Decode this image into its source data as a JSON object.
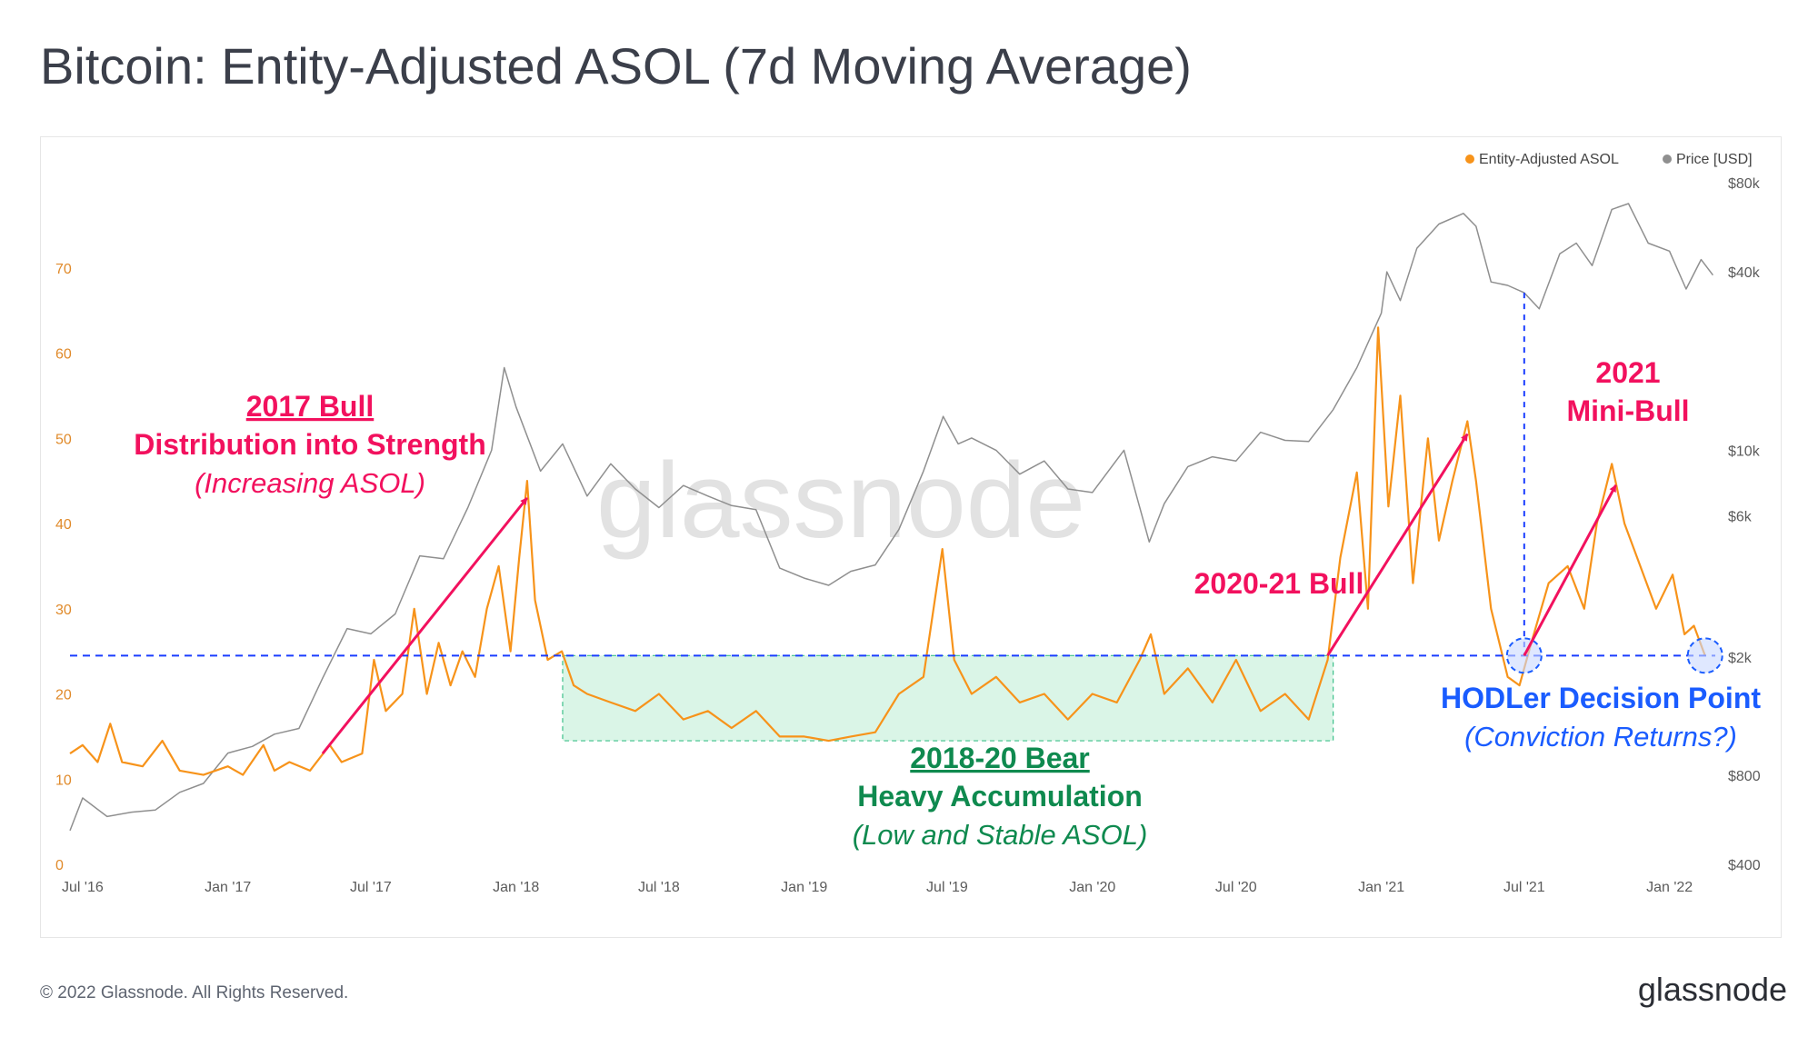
{
  "title": "Bitcoin: Entity-Adjusted ASOL (7d Moving Average)",
  "footer": {
    "copyright": "© 2022 Glassnode. All Rights Reserved.",
    "logo": "glassnode"
  },
  "watermark": "glassnode",
  "colors": {
    "asol": "#f7931a",
    "price": "#8f8f8f",
    "annotation_red": "#f2115e",
    "annotation_green": "#0f8a4f",
    "annotation_blue": "#1a5cff",
    "box_fill": "#cdf1df",
    "box_stroke": "#3cc08a",
    "left_axis": "#e08a2a",
    "right_axis": "#5b5b5b",
    "axis_text": "#5b5b5b"
  },
  "chart_data": {
    "type": "line",
    "title": "Bitcoin: Entity-Adjusted ASOL (7d Moving Average)",
    "x_range": [
      "2016-06-15",
      "2022-02-28"
    ],
    "x_ticks": [
      {
        "label": "Jul '16",
        "date": "2016-07-01"
      },
      {
        "label": "Jan '17",
        "date": "2017-01-01"
      },
      {
        "label": "Jul '17",
        "date": "2017-07-01"
      },
      {
        "label": "Jan '18",
        "date": "2018-01-01"
      },
      {
        "label": "Jul '18",
        "date": "2018-07-01"
      },
      {
        "label": "Jan '19",
        "date": "2019-01-01"
      },
      {
        "label": "Jul '19",
        "date": "2019-07-01"
      },
      {
        "label": "Jan '20",
        "date": "2020-01-01"
      },
      {
        "label": "Jul '20",
        "date": "2020-07-01"
      },
      {
        "label": "Jan '21",
        "date": "2021-01-01"
      },
      {
        "label": "Jul '21",
        "date": "2021-07-01"
      },
      {
        "label": "Jan '22",
        "date": "2022-01-01"
      }
    ],
    "y_left": {
      "min": 0,
      "max": 80,
      "ticks": [
        0,
        10,
        20,
        30,
        40,
        50,
        60,
        70
      ]
    },
    "y_right": {
      "scale": "log",
      "min": 400,
      "max": 80000,
      "ticks": [
        {
          "label": "$400",
          "value": 400
        },
        {
          "label": "$800",
          "value": 800
        },
        {
          "label": "$2k",
          "value": 2000
        },
        {
          "label": "$6k",
          "value": 6000
        },
        {
          "label": "$10k",
          "value": 10000
        },
        {
          "label": "$40k",
          "value": 40000
        },
        {
          "label": "$80k",
          "value": 80000
        }
      ]
    },
    "legend": {
      "position": "top-right",
      "items": [
        {
          "label": "Entity-Adjusted ASOL",
          "color": "#f7931a"
        },
        {
          "label": "Price [USD]",
          "color": "#8f8f8f"
        }
      ]
    },
    "series": [
      {
        "name": "Entity-Adjusted ASOL",
        "axis": "left",
        "points": [
          [
            "2016-06-15",
            13
          ],
          [
            "2016-07-01",
            14
          ],
          [
            "2016-07-20",
            12
          ],
          [
            "2016-08-05",
            16.5
          ],
          [
            "2016-08-20",
            12
          ],
          [
            "2016-09-15",
            11.5
          ],
          [
            "2016-10-10",
            14.5
          ],
          [
            "2016-11-01",
            11
          ],
          [
            "2016-12-01",
            10.5
          ],
          [
            "2017-01-01",
            11.5
          ],
          [
            "2017-01-20",
            10.5
          ],
          [
            "2017-02-15",
            14
          ],
          [
            "2017-03-01",
            11
          ],
          [
            "2017-03-20",
            12
          ],
          [
            "2017-04-15",
            11
          ],
          [
            "2017-05-10",
            14
          ],
          [
            "2017-05-25",
            12
          ],
          [
            "2017-06-20",
            13
          ],
          [
            "2017-07-05",
            24
          ],
          [
            "2017-07-20",
            18
          ],
          [
            "2017-08-10",
            20
          ],
          [
            "2017-08-25",
            30
          ],
          [
            "2017-09-10",
            20
          ],
          [
            "2017-09-25",
            26
          ],
          [
            "2017-10-10",
            21
          ],
          [
            "2017-10-25",
            25
          ],
          [
            "2017-11-10",
            22
          ],
          [
            "2017-11-25",
            30
          ],
          [
            "2017-12-10",
            35
          ],
          [
            "2017-12-25",
            25
          ],
          [
            "2018-01-05",
            36
          ],
          [
            "2018-01-15",
            45
          ],
          [
            "2018-01-25",
            31
          ],
          [
            "2018-02-10",
            24
          ],
          [
            "2018-02-28",
            25
          ],
          [
            "2018-03-15",
            21
          ],
          [
            "2018-04-01",
            20
          ],
          [
            "2018-05-01",
            19
          ],
          [
            "2018-06-01",
            18
          ],
          [
            "2018-07-01",
            20
          ],
          [
            "2018-08-01",
            17
          ],
          [
            "2018-09-01",
            18
          ],
          [
            "2018-10-01",
            16
          ],
          [
            "2018-11-01",
            18
          ],
          [
            "2018-12-01",
            15
          ],
          [
            "2019-01-01",
            15
          ],
          [
            "2019-02-01",
            14.5
          ],
          [
            "2019-03-01",
            15
          ],
          [
            "2019-04-01",
            15.5
          ],
          [
            "2019-05-01",
            20
          ],
          [
            "2019-06-01",
            22
          ],
          [
            "2019-06-25",
            37
          ],
          [
            "2019-07-10",
            24
          ],
          [
            "2019-08-01",
            20
          ],
          [
            "2019-09-01",
            22
          ],
          [
            "2019-10-01",
            19
          ],
          [
            "2019-11-01",
            20
          ],
          [
            "2019-12-01",
            17
          ],
          [
            "2020-01-01",
            20
          ],
          [
            "2020-02-01",
            19
          ],
          [
            "2020-03-01",
            24
          ],
          [
            "2020-03-15",
            27
          ],
          [
            "2020-04-01",
            20
          ],
          [
            "2020-05-01",
            23
          ],
          [
            "2020-06-01",
            19
          ],
          [
            "2020-07-01",
            24
          ],
          [
            "2020-08-01",
            18
          ],
          [
            "2020-09-01",
            20
          ],
          [
            "2020-10-01",
            17
          ],
          [
            "2020-10-25",
            24
          ],
          [
            "2020-11-10",
            36
          ],
          [
            "2020-12-01",
            46
          ],
          [
            "2020-12-15",
            30
          ],
          [
            "2020-12-28",
            63
          ],
          [
            "2021-01-10",
            42
          ],
          [
            "2021-01-25",
            55
          ],
          [
            "2021-02-10",
            33
          ],
          [
            "2021-03-01",
            50
          ],
          [
            "2021-03-15",
            38
          ],
          [
            "2021-04-01",
            45
          ],
          [
            "2021-04-20",
            52
          ],
          [
            "2021-05-01",
            45
          ],
          [
            "2021-05-20",
            30
          ],
          [
            "2021-06-10",
            22
          ],
          [
            "2021-06-25",
            21
          ],
          [
            "2021-07-10",
            26
          ],
          [
            "2021-08-01",
            33
          ],
          [
            "2021-08-25",
            35
          ],
          [
            "2021-09-15",
            30
          ],
          [
            "2021-10-01",
            40
          ],
          [
            "2021-10-20",
            47
          ],
          [
            "2021-11-05",
            40
          ],
          [
            "2021-11-25",
            35
          ],
          [
            "2021-12-15",
            30
          ],
          [
            "2022-01-05",
            34
          ],
          [
            "2022-01-20",
            27
          ],
          [
            "2022-02-01",
            28
          ],
          [
            "2022-02-15",
            24.5
          ]
        ]
      },
      {
        "name": "Price [USD]",
        "axis": "right",
        "points": [
          [
            "2016-06-15",
            520
          ],
          [
            "2016-07-01",
            670
          ],
          [
            "2016-08-01",
            580
          ],
          [
            "2016-09-01",
            600
          ],
          [
            "2016-10-01",
            610
          ],
          [
            "2016-11-01",
            700
          ],
          [
            "2016-12-01",
            750
          ],
          [
            "2017-01-01",
            950
          ],
          [
            "2017-02-01",
            1000
          ],
          [
            "2017-03-01",
            1100
          ],
          [
            "2017-04-01",
            1150
          ],
          [
            "2017-05-01",
            1700
          ],
          [
            "2017-06-01",
            2500
          ],
          [
            "2017-07-01",
            2400
          ],
          [
            "2017-08-01",
            2800
          ],
          [
            "2017-09-01",
            4400
          ],
          [
            "2017-10-01",
            4300
          ],
          [
            "2017-11-01",
            6400
          ],
          [
            "2017-12-01",
            10000
          ],
          [
            "2017-12-17",
            19000
          ],
          [
            "2018-01-01",
            14000
          ],
          [
            "2018-02-01",
            8500
          ],
          [
            "2018-03-01",
            10500
          ],
          [
            "2018-04-01",
            7000
          ],
          [
            "2018-05-01",
            9000
          ],
          [
            "2018-06-01",
            7400
          ],
          [
            "2018-07-01",
            6400
          ],
          [
            "2018-08-01",
            7600
          ],
          [
            "2018-09-01",
            7000
          ],
          [
            "2018-10-01",
            6500
          ],
          [
            "2018-11-01",
            6300
          ],
          [
            "2018-12-01",
            4000
          ],
          [
            "2019-01-01",
            3700
          ],
          [
            "2019-02-01",
            3500
          ],
          [
            "2019-03-01",
            3900
          ],
          [
            "2019-04-01",
            4100
          ],
          [
            "2019-05-01",
            5400
          ],
          [
            "2019-06-01",
            8500
          ],
          [
            "2019-06-26",
            13000
          ],
          [
            "2019-07-15",
            10500
          ],
          [
            "2019-08-01",
            11000
          ],
          [
            "2019-09-01",
            10000
          ],
          [
            "2019-10-01",
            8300
          ],
          [
            "2019-11-01",
            9200
          ],
          [
            "2019-12-01",
            7400
          ],
          [
            "2020-01-01",
            7200
          ],
          [
            "2020-02-10",
            10000
          ],
          [
            "2020-03-13",
            4900
          ],
          [
            "2020-04-01",
            6600
          ],
          [
            "2020-05-01",
            8800
          ],
          [
            "2020-06-01",
            9500
          ],
          [
            "2020-07-01",
            9200
          ],
          [
            "2020-08-01",
            11500
          ],
          [
            "2020-09-01",
            10800
          ],
          [
            "2020-10-01",
            10700
          ],
          [
            "2020-11-01",
            13700
          ],
          [
            "2020-12-01",
            19000
          ],
          [
            "2021-01-01",
            29000
          ],
          [
            "2021-01-08",
            40000
          ],
          [
            "2021-01-25",
            32000
          ],
          [
            "2021-02-15",
            48000
          ],
          [
            "2021-03-15",
            58000
          ],
          [
            "2021-04-15",
            63000
          ],
          [
            "2021-05-01",
            57000
          ],
          [
            "2021-05-20",
            37000
          ],
          [
            "2021-06-10",
            36000
          ],
          [
            "2021-07-01",
            34000
          ],
          [
            "2021-07-20",
            30000
          ],
          [
            "2021-08-15",
            46000
          ],
          [
            "2021-09-05",
            50000
          ],
          [
            "2021-09-25",
            42000
          ],
          [
            "2021-10-20",
            65000
          ],
          [
            "2021-11-10",
            68000
          ],
          [
            "2021-12-05",
            50000
          ],
          [
            "2022-01-01",
            47000
          ],
          [
            "2022-01-22",
            35000
          ],
          [
            "2022-02-10",
            44000
          ],
          [
            "2022-02-25",
            39000
          ]
        ]
      }
    ],
    "reference_line": {
      "value": 24.5,
      "axis": "left",
      "style": "dashed"
    },
    "annotations": {
      "bull2017_heading": "2017 Bull",
      "bull2017_line2": "Distribution into Strength",
      "bull2017_line3": "(Increasing ASOL)",
      "bear_heading": "2018-20 Bear",
      "bear_line2": "Heavy Accumulation",
      "bear_line3": "(Low and Stable ASOL)",
      "bull2020": "2020-21 Bull",
      "mini_line1": "2021",
      "mini_line2": "Mini-Bull",
      "hodler_line1": "HODLer Decision Point",
      "hodler_line2": "(Conviction Returns?)"
    },
    "accumulation_box": {
      "x_start": "2018-03-01",
      "x_end": "2020-11-01",
      "y_low": 14.5,
      "y_high": 24.5
    },
    "arrows": [
      {
        "name": "arrow-2017-bull",
        "from": [
          "2017-05-01",
          13
        ],
        "to": [
          "2018-01-15",
          43
        ]
      },
      {
        "name": "arrow-2020-21-bull",
        "from": [
          "2020-10-25",
          24.5
        ],
        "to": [
          "2021-04-20",
          50.5
        ]
      },
      {
        "name": "arrow-2021-mini-bull",
        "from": [
          "2021-07-01",
          24.5
        ],
        "to": [
          "2021-10-25",
          44.5
        ]
      }
    ],
    "decision_points": [
      {
        "name": "decision-circle-jul21",
        "date": "2021-07-01",
        "value": 24.5
      },
      {
        "name": "decision-circle-feb22",
        "date": "2022-02-15",
        "value": 24.5
      }
    ],
    "price_dropline": {
      "date": "2021-07-01",
      "price": 34000,
      "to_asol": 24.5
    }
  }
}
